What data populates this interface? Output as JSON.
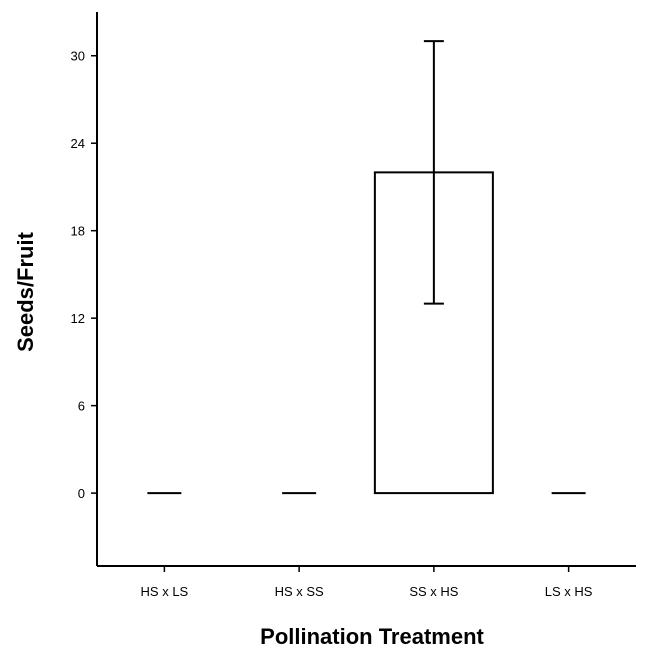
{
  "chart_data": {
    "type": "bar",
    "title": "",
    "xlabel": "Pollination Treatment",
    "ylabel": "Seeds/Fruit",
    "categories": [
      "HS x LS",
      "HS x SS",
      "SS x HS",
      "LS x HS"
    ],
    "values": [
      0,
      0,
      22,
      0
    ],
    "error_bars": [
      {
        "category": "SS x HS",
        "low": 13,
        "high": 31
      }
    ],
    "y_ticks": [
      0,
      6,
      12,
      18,
      24,
      30
    ],
    "ylim": [
      -5,
      33
    ],
    "grid": false,
    "legend": "none"
  }
}
